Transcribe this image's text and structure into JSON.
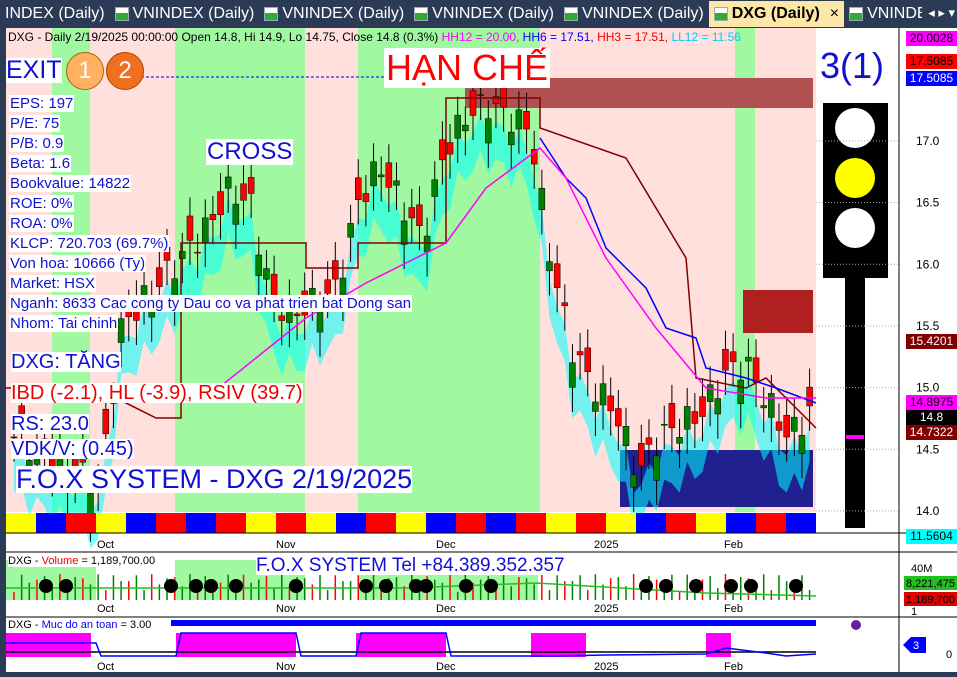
{
  "tabs": [
    {
      "label": "INDEX (Daily)"
    },
    {
      "label": "VNINDEX (Daily)"
    },
    {
      "label": "VNINDEX (Daily)"
    },
    {
      "label": "VNINDEX (Daily)"
    },
    {
      "label": "VNINDEX (Daily)"
    },
    {
      "label": "DXG (Daily)",
      "active": true
    },
    {
      "label": "VNINDEX (Daily)"
    }
  ],
  "nav_arrows": "◂ ▸ ▾",
  "close_tab": "×",
  "header": {
    "prefix": "DXG - Daily 2/19/2025 00:00:00 Open 14.8, Hi 14.9, Lo 14.75, Close 14.8 (0.3%)",
    "hh12": "HH12 = 20.00,",
    "hh6": "HH6 = 17.51,",
    "hh3": "HH3 = 17.51,",
    "ll12": "LL12 = 11.56"
  },
  "overlay": {
    "exit": "EXIT",
    "circle1": "1",
    "circle2": "2",
    "han_che": "HẠN CHẾ",
    "cross": "CROSS",
    "signal": "3(1)",
    "fundamentals": [
      "EPS: 197",
      "P/E: 75",
      "P/B: 0.9",
      "Beta: 1.6",
      "Bookvalue: 14822",
      "ROE: 0%",
      "ROA: 0%",
      "KLCP: 720.703 (69.7%)",
      "Von hoa: 10666 (Ty)",
      "Market: HSX",
      "Nganh: 8633 Cac cong ty Dau co va phat trien bat Dong san",
      "Nhom: Tai chinh"
    ],
    "trend": "DXG: TĂNG",
    "ibd": "IBD (-2.1), HL (-3.9), RSIV (39.7)",
    "rs": "RS: 23.0",
    "vdk": "VDK/V:  (0.45)",
    "footer": "F.O.X SYSTEM - DXG 2/19/2025"
  },
  "price_axis": {
    "ticks": [
      "17.0",
      "16.5",
      "16.0",
      "15.5",
      "15.0",
      "14.5",
      "14.0"
    ],
    "labels": [
      {
        "text": "20.0028",
        "bg": "#ff00ff",
        "fg": "#000"
      },
      {
        "text": "17.5085",
        "bg": "#ff0000",
        "fg": "#000"
      },
      {
        "text": "17.5085",
        "bg": "#0000ff",
        "fg": "#fff"
      },
      {
        "text": "15.4201",
        "bg": "#800000",
        "fg": "#fff"
      },
      {
        "text": "14.8975",
        "bg": "#ff00ff",
        "fg": "#000"
      },
      {
        "text": "14.8",
        "bg": "#000",
        "fg": "#fff"
      },
      {
        "text": "14.7322",
        "bg": "#800000",
        "fg": "#fff"
      },
      {
        "text": "11.5604",
        "bg": "#00ffff",
        "fg": "#000"
      }
    ]
  },
  "months": [
    "Oct",
    "Nov",
    "Dec",
    "2025",
    "Feb"
  ],
  "volume": {
    "title_sym": "DXG - ",
    "title_name": "Volume",
    "title_val": " = 1,189,700.00",
    "banner": "F.O.X SYSTEM Tel +84.389.352.357",
    "axis_top": "40M",
    "label_ma": "8,221,475",
    "label_vol": "1,189,700",
    "axis_bottom": "1"
  },
  "safety": {
    "title_sym": "DXG - ",
    "title_name": "Muc do an toan",
    "title_val": " = 3.00",
    "marker": "3",
    "axis_zero": "0"
  },
  "colors": {
    "up": "#008000",
    "down": "#ff0000",
    "bull_band": "#a0f8a0",
    "bear_band": "#ffe0dc",
    "cloud": "#00ffff",
    "text_blue": "#1010d0"
  },
  "chart_data": {
    "type": "candlestick",
    "symbol": "DXG",
    "interval": "Daily",
    "ylim": [
      13.9,
      17.6
    ],
    "close_approx": [
      14.6,
      14.5,
      14.4,
      14.3,
      14.2,
      15.5,
      15.7,
      15.9,
      16.1,
      16.3,
      16.6,
      16.5,
      15.7,
      15.6,
      15.7,
      15.8,
      16.5,
      16.8,
      16.5,
      16.2,
      16.9,
      17.2,
      17.3,
      17.2,
      17.1,
      16.0,
      15.3,
      15.0,
      14.8,
      14.3,
      14.6,
      14.7,
      14.8,
      15.1,
      15.2,
      14.9,
      14.6,
      14.8
    ]
  }
}
